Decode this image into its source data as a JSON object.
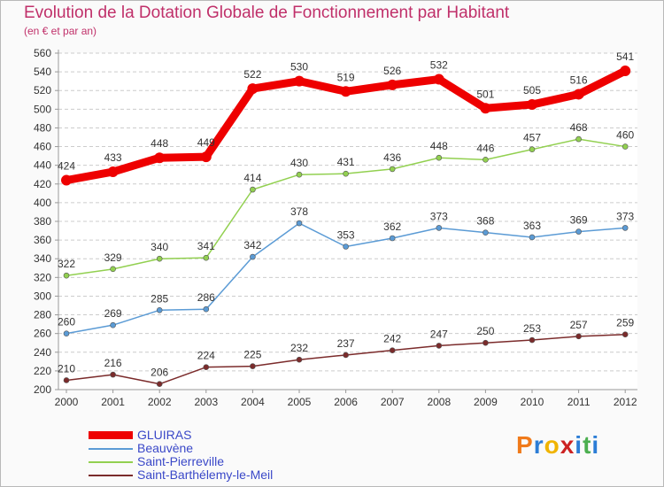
{
  "title": "Evolution de la Dotation Globale de Fonctionnement par Habitant",
  "subtitle": "(en € et par an)",
  "brand": {
    "letters": [
      "P",
      "r",
      "o",
      "x",
      "i",
      "t",
      "i"
    ],
    "colors": [
      "#f07a1a",
      "#2c7dd6",
      "#f0b400",
      "#cc2222",
      "#2c7dd6",
      "#4caf50",
      "#2c7dd6"
    ]
  },
  "chart_data": {
    "type": "line",
    "title": "Evolution de la Dotation Globale de Fonctionnement par Habitant",
    "subtitle": "(en € et par an)",
    "x": [
      "2000",
      "2001",
      "2002",
      "2003",
      "2004",
      "2005",
      "2006",
      "2007",
      "2008",
      "2009",
      "2010",
      "2011",
      "2012"
    ],
    "ylim": [
      200,
      560
    ],
    "yticks": [
      200,
      220,
      240,
      260,
      280,
      300,
      320,
      340,
      360,
      380,
      400,
      420,
      440,
      460,
      480,
      500,
      520,
      540,
      560
    ],
    "grid": "horizontal dashed",
    "legend_position": "bottom-left",
    "series": [
      {
        "name": "GLUIRAS",
        "color": "#ee0000",
        "values": [
          424,
          433,
          448,
          449,
          522,
          530,
          519,
          526,
          532,
          501,
          505,
          516,
          541
        ]
      },
      {
        "name": "Beauvène",
        "color": "#5b9bd5",
        "values": [
          260,
          269,
          285,
          286,
          342,
          378,
          353,
          362,
          373,
          368,
          363,
          369,
          373
        ]
      },
      {
        "name": "Saint-Pierreville",
        "color": "#92d050",
        "values": [
          322,
          329,
          340,
          341,
          414,
          430,
          431,
          436,
          448,
          446,
          457,
          468,
          460
        ]
      },
      {
        "name": "Saint-Barthélemy-le-Meil",
        "color": "#7b2b2b",
        "values": [
          210,
          216,
          206,
          224,
          225,
          232,
          237,
          242,
          247,
          250,
          253,
          257,
          259
        ]
      }
    ]
  }
}
